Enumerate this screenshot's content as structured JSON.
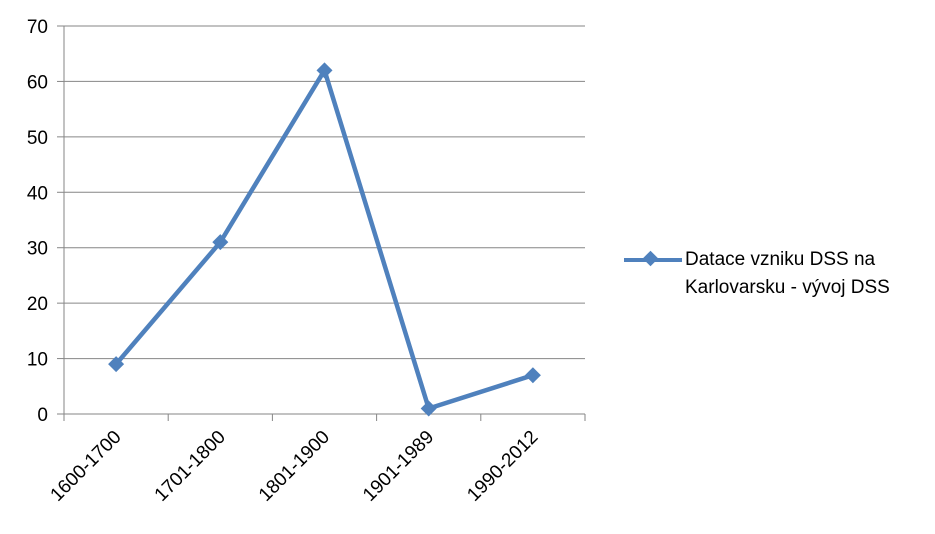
{
  "chart_data": {
    "type": "line",
    "categories": [
      "1600-1700",
      "1701-1800",
      "1801-1900",
      "1901-1989",
      "1990-2012"
    ],
    "series": [
      {
        "name": "Datace vzniku DSS na Karlovarsku - vývoj DSS",
        "values": [
          9,
          31,
          62,
          1,
          7
        ]
      }
    ],
    "ylim": [
      0,
      70
    ],
    "yticks": [
      0,
      10,
      20,
      30,
      40,
      50,
      60,
      70
    ],
    "grid": true,
    "legend_position": "right",
    "title": "",
    "xlabel": "",
    "ylabel": "",
    "colors": {
      "series": "#4f81bd",
      "grid": "#868686"
    }
  }
}
